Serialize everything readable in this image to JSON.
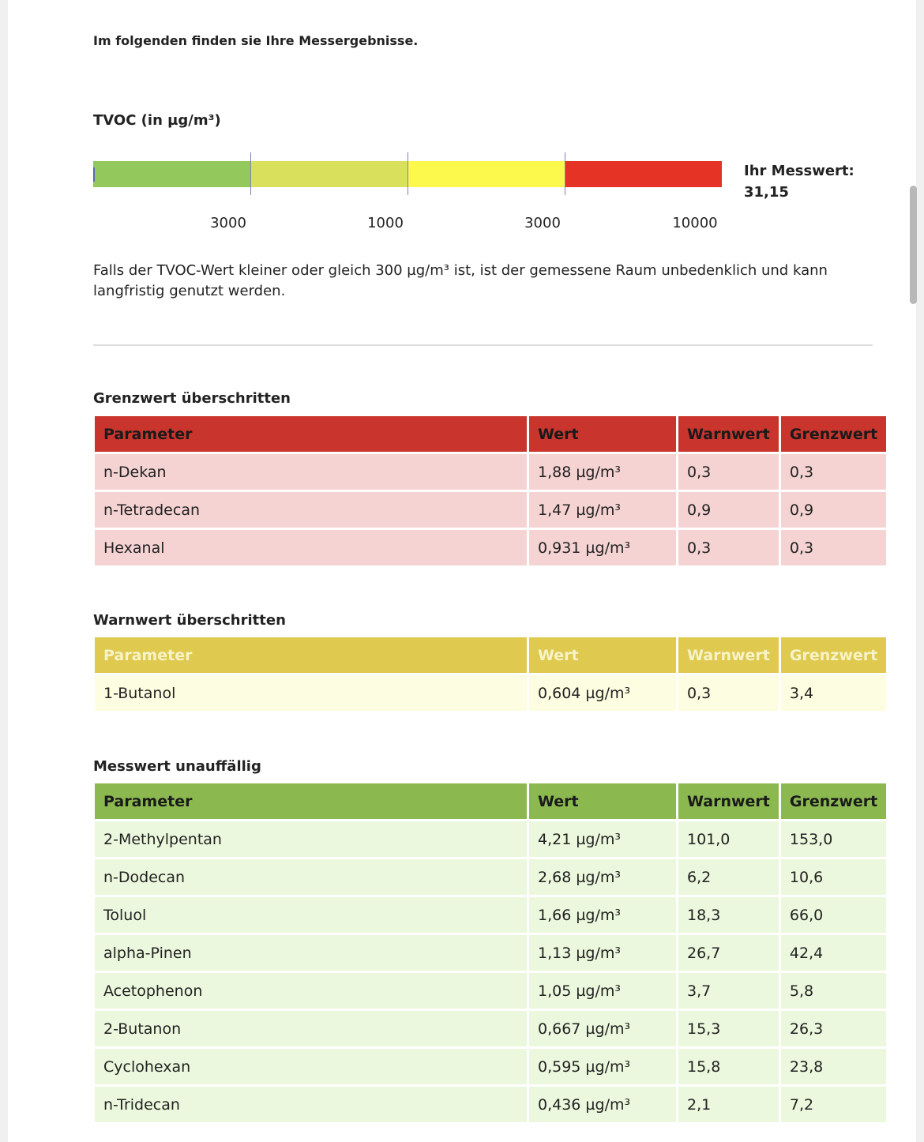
{
  "intro": "Im folgenden finden sie Ihre Messergebnisse.",
  "tvoc": {
    "title": "TVOC (in µg/m³)",
    "scale_labels": [
      "3000",
      "1000",
      "3000",
      "10000"
    ],
    "result_label": "Ihr Messwert:",
    "result": "31,15",
    "note": "Falls der TVOC-Wert kleiner oder gleich 300 µg/m³ ist, ist der gemessene Raum unbedenklich und kann langfristig genutzt werden."
  },
  "sections": [
    {
      "title": "Grenzwert überschritten",
      "header": [
        "Parameter",
        "Wert",
        "Warnwert",
        "Grenzwert"
      ],
      "rows": [
        [
          "n-Dekan",
          "1,88 µg/m³",
          "0,3",
          "0,3"
        ],
        [
          "n-Tetradecan",
          "1,47 µg/m³",
          "0,9",
          "0,9"
        ],
        [
          "Hexanal",
          "0,931 µg/m³",
          "0,3",
          "0,3"
        ]
      ]
    },
    {
      "title": "Warnwert überschritten",
      "header": [
        "Parameter",
        "Wert",
        "Warnwert",
        "Grenzwert"
      ],
      "rows": [
        [
          "1-Butanol",
          "0,604 µg/m³",
          "0,3",
          "3,4"
        ]
      ]
    },
    {
      "title": "Messwert unauffällig",
      "header": [
        "Parameter",
        "Wert",
        "Warnwert",
        "Grenzwert"
      ],
      "rows": [
        [
          "2-Methylpentan",
          "4,21 µg/m³",
          "101,0",
          "153,0"
        ],
        [
          "n-Dodecan",
          "2,68 µg/m³",
          "6,2",
          "10,6"
        ],
        [
          "Toluol",
          "1,66 µg/m³",
          "18,3",
          "66,0"
        ],
        [
          "alpha-Pinen",
          "1,13 µg/m³",
          "26,7",
          "42,4"
        ],
        [
          "Acetophenon",
          "1,05 µg/m³",
          "3,7",
          "5,8"
        ],
        [
          "2-Butanon",
          "0,667 µg/m³",
          "15,3",
          "26,3"
        ],
        [
          "Cyclohexan",
          "0,595 µg/m³",
          "15,8",
          "23,8"
        ],
        [
          "n-Tridecan",
          "0,436 µg/m³",
          "2,1",
          "7,2"
        ]
      ]
    }
  ]
}
